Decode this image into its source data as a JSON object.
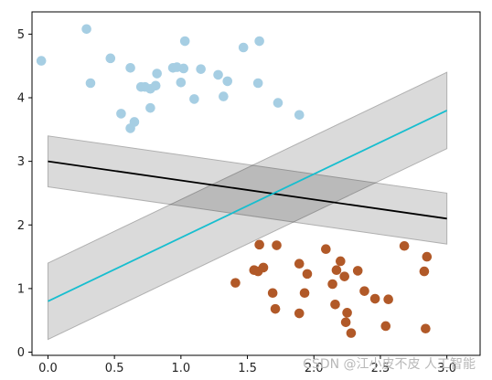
{
  "chart_data": {
    "type": "scatter",
    "title": "",
    "xlabel": "",
    "ylabel": "",
    "xlim": [
      -0.12,
      3.25
    ],
    "ylim": [
      -0.05,
      5.35
    ],
    "x_ticks": [
      0.0,
      0.5,
      1.0,
      1.5,
      2.0,
      2.5,
      3.0
    ],
    "x_tick_labels": [
      "0.0",
      "0.5",
      "1.0",
      "1.5",
      "2.0",
      "2.5",
      "3.0"
    ],
    "y_ticks": [
      0,
      1,
      2,
      3,
      4,
      5
    ],
    "y_tick_labels": [
      "0",
      "1",
      "2",
      "3",
      "4",
      "5"
    ],
    "grid": false,
    "series": [
      {
        "kind": "points",
        "color": "#a6cee3",
        "points": [
          [
            -0.05,
            4.58
          ],
          [
            0.29,
            5.08
          ],
          [
            0.32,
            4.23
          ],
          [
            0.47,
            4.62
          ],
          [
            0.55,
            3.75
          ],
          [
            0.62,
            4.47
          ],
          [
            0.62,
            3.52
          ],
          [
            0.65,
            3.62
          ],
          [
            0.7,
            4.17
          ],
          [
            0.73,
            4.17
          ],
          [
            0.77,
            4.14
          ],
          [
            0.77,
            3.84
          ],
          [
            0.81,
            4.19
          ],
          [
            0.82,
            4.38
          ],
          [
            0.94,
            4.47
          ],
          [
            0.97,
            4.48
          ],
          [
            1.0,
            4.24
          ],
          [
            1.02,
            4.46
          ],
          [
            1.03,
            4.89
          ],
          [
            1.1,
            3.98
          ],
          [
            1.15,
            4.45
          ],
          [
            1.28,
            4.36
          ],
          [
            1.32,
            4.02
          ],
          [
            1.35,
            4.26
          ],
          [
            1.47,
            4.79
          ],
          [
            1.58,
            4.23
          ],
          [
            1.59,
            4.89
          ],
          [
            1.73,
            3.92
          ],
          [
            1.89,
            3.73
          ]
        ]
      },
      {
        "kind": "points",
        "color": "#b15928",
        "points": [
          [
            1.41,
            1.09
          ],
          [
            1.55,
            1.29
          ],
          [
            1.58,
            1.27
          ],
          [
            1.59,
            1.69
          ],
          [
            1.62,
            1.33
          ],
          [
            1.69,
            0.93
          ],
          [
            1.71,
            0.68
          ],
          [
            1.72,
            1.68
          ],
          [
            1.89,
            1.39
          ],
          [
            1.89,
            0.61
          ],
          [
            1.93,
            0.93
          ],
          [
            1.95,
            1.23
          ],
          [
            2.09,
            1.62
          ],
          [
            2.14,
            1.07
          ],
          [
            2.16,
            0.75
          ],
          [
            2.17,
            1.29
          ],
          [
            2.2,
            1.43
          ],
          [
            2.23,
            1.19
          ],
          [
            2.24,
            0.47
          ],
          [
            2.25,
            0.62
          ],
          [
            2.28,
            0.3
          ],
          [
            2.33,
            1.28
          ],
          [
            2.38,
            0.96
          ],
          [
            2.46,
            0.84
          ],
          [
            2.54,
            0.41
          ],
          [
            2.56,
            0.83
          ],
          [
            2.68,
            1.67
          ],
          [
            2.83,
            1.27
          ],
          [
            2.84,
            0.37
          ],
          [
            2.85,
            1.5
          ]
        ]
      },
      {
        "kind": "margin_band",
        "color": "#d3d3d3",
        "lower": [
          [
            0.0,
            2.6
          ],
          [
            3.0,
            1.7
          ]
        ],
        "upper": [
          [
            0.0,
            3.4
          ],
          [
            3.0,
            2.5
          ]
        ]
      },
      {
        "kind": "margin_band",
        "color": "#d3d3d3",
        "lower": [
          [
            0.0,
            0.2
          ],
          [
            3.0,
            3.2
          ]
        ],
        "upper": [
          [
            0.0,
            1.4
          ],
          [
            3.0,
            4.4
          ]
        ]
      },
      {
        "kind": "line",
        "color": "#000000",
        "points": [
          [
            0.0,
            3.0
          ],
          [
            3.0,
            2.1
          ]
        ]
      },
      {
        "kind": "line",
        "color": "#17becf",
        "points": [
          [
            0.0,
            0.8
          ],
          [
            3.0,
            3.8
          ]
        ]
      }
    ]
  },
  "watermark": "CSDN @江小皮不皮 人工智能"
}
